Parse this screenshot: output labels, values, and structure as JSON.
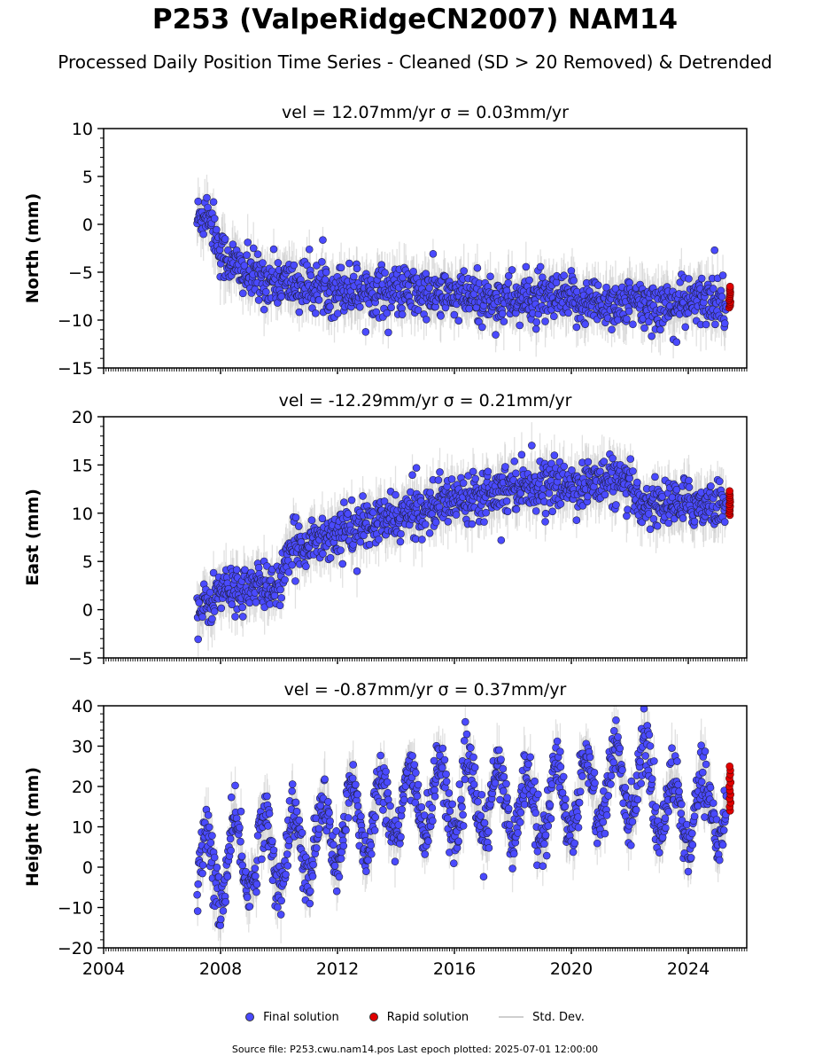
{
  "figure": {
    "title": "P253 (ValpeRidgeCN2007) NAM14",
    "subtitle": "Processed Daily Position Time Series - Cleaned (SD > 20 Removed) & Detrended",
    "footer": "Source file: P253.cwu.nam14.pos  Last epoch plotted: 2025-07-01 12:00:00"
  },
  "legend": {
    "final_label": "Final solution",
    "rapid_label": "Rapid solution",
    "std_label": "Std. Dev."
  },
  "colors": {
    "final": "#4a4aff",
    "rapid": "#e00000",
    "std": "#c8c8c8",
    "marker_edge": "#222244"
  },
  "chart_data": [
    {
      "type": "scatter",
      "title": "vel = 12.07mm/yr   σ = 0.03mm/yr",
      "ylabel": "North (mm)",
      "xlabel": "",
      "xlim": [
        2004,
        2026
      ],
      "ylim": [
        -15,
        10
      ],
      "yticks": [
        -15,
        -10,
        -5,
        0,
        5,
        10
      ],
      "xticks": [
        2004,
        2008,
        2012,
        2016,
        2020,
        2024
      ],
      "show_xticklabels": false,
      "grid": false,
      "legend_position": "bottom-center",
      "series": [
        {
          "name": "Final solution",
          "x_range": [
            2007.2,
            2025.3
          ],
          "trend": [
            [
              2007.2,
              0.5
            ],
            [
              2007.6,
              1.5
            ],
            [
              2008.0,
              -3.0
            ],
            [
              2009.0,
              -5.5
            ],
            [
              2011.0,
              -6.5
            ],
            [
              2014.0,
              -7.0
            ],
            [
              2017.0,
              -7.8
            ],
            [
              2020.0,
              -8.0
            ],
            [
              2023.0,
              -8.5
            ],
            [
              2025.3,
              -7.8
            ]
          ],
          "noise_sd": 1.3,
          "outliers": [
            [
              2024.9,
              -2.7
            ],
            [
              2023.6,
              -12.3
            ]
          ]
        },
        {
          "name": "Rapid solution",
          "x_range": [
            2025.4,
            2025.45
          ],
          "values_range": [
            -8.7,
            -6.5
          ]
        }
      ]
    },
    {
      "type": "scatter",
      "title": "vel = -12.29mm/yr   σ = 0.21mm/yr",
      "ylabel": "East (mm)",
      "xlabel": "",
      "xlim": [
        2004,
        2026
      ],
      "ylim": [
        -5,
        20
      ],
      "yticks": [
        -5,
        0,
        5,
        10,
        15,
        20
      ],
      "xticks": [
        2004,
        2008,
        2012,
        2016,
        2020,
        2024
      ],
      "show_xticklabels": false,
      "grid": false,
      "series": [
        {
          "name": "Final solution",
          "x_range": [
            2007.2,
            2025.3
          ],
          "trend": [
            [
              2007.2,
              -0.5
            ],
            [
              2008.0,
              2.0
            ],
            [
              2010.0,
              2.5
            ],
            [
              2010.5,
              6.5
            ],
            [
              2012.0,
              8.0
            ],
            [
              2014.0,
              9.5
            ],
            [
              2016.0,
              11.5
            ],
            [
              2018.0,
              13.0
            ],
            [
              2020.0,
              12.8
            ],
            [
              2021.5,
              13.5
            ],
            [
              2022.5,
              11.0
            ],
            [
              2025.3,
              11.0
            ]
          ],
          "noise_sd": 1.2,
          "outliers": [
            [
              2014.7,
              14.7
            ],
            [
              2017.6,
              7.2
            ]
          ]
        },
        {
          "name": "Rapid solution",
          "x_range": [
            2025.4,
            2025.45
          ],
          "values_range": [
            9.8,
            12.3
          ]
        }
      ]
    },
    {
      "type": "scatter",
      "title": "vel = -0.87mm/yr   σ = 0.37mm/yr",
      "ylabel": "Height (mm)",
      "xlabel": "",
      "xlim": [
        2004,
        2026
      ],
      "ylim": [
        -20,
        40
      ],
      "yticks": [
        -20,
        -10,
        0,
        10,
        20,
        30,
        40
      ],
      "xticks": [
        2004,
        2008,
        2012,
        2016,
        2020,
        2024
      ],
      "xticklabels": [
        "2004",
        "2008",
        "2012",
        "2016",
        "2020",
        "2024"
      ],
      "show_xticklabels": true,
      "grid": false,
      "series": [
        {
          "name": "Final solution",
          "x_range": [
            2007.2,
            2025.3
          ],
          "trend": [
            [
              2007.2,
              -2.0
            ],
            [
              2009.0,
              3.0
            ],
            [
              2011.0,
              5.0
            ],
            [
              2013.0,
              13.0
            ],
            [
              2015.0,
              17.0
            ],
            [
              2017.0,
              16.0
            ],
            [
              2019.0,
              15.0
            ],
            [
              2021.0,
              20.0
            ],
            [
              2022.5,
              22.0
            ],
            [
              2023.5,
              13.0
            ],
            [
              2025.3,
              16.0
            ]
          ],
          "seasonal_amplitude": 9,
          "noise_sd": 3.5
        },
        {
          "name": "Rapid solution",
          "x_range": [
            2025.4,
            2025.45
          ],
          "values_range": [
            14.0,
            25.0
          ]
        }
      ]
    }
  ]
}
